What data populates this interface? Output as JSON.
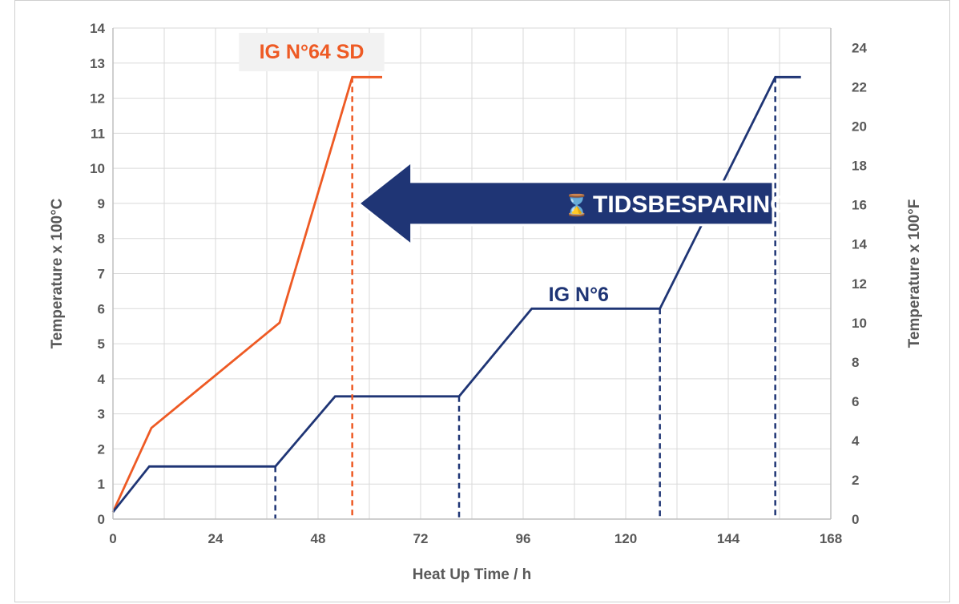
{
  "chart_data": {
    "type": "line",
    "title": "",
    "xlabel": "Heat Up Time / h",
    "ylabel_left": "Temperature x 100°C",
    "ylabel_right": "Temperature x 100°F",
    "xlim": [
      0,
      168
    ],
    "ylim_left": [
      0,
      14
    ],
    "ylim_right": [
      0,
      25
    ],
    "x_ticks": [
      "0",
      "24",
      "48",
      "72",
      "96",
      "120",
      "144",
      "168"
    ],
    "y_left_ticks": [
      "0",
      "1",
      "2",
      "3",
      "4",
      "5",
      "6",
      "7",
      "8",
      "9",
      "10",
      "11",
      "12",
      "13",
      "14"
    ],
    "y_right_ticks": [
      "0",
      "2",
      "4",
      "6",
      "8",
      "10",
      "12",
      "14",
      "16",
      "18",
      "20",
      "22",
      "24"
    ],
    "grid": true,
    "series": [
      {
        "name": "IG N°64 SD",
        "color": "#ee5a24",
        "points": [
          [
            0,
            0.2
          ],
          [
            9,
            2.6
          ],
          [
            39,
            5.6
          ],
          [
            56,
            12.6
          ],
          [
            63,
            12.6
          ]
        ],
        "dashed_markers_x": [
          56
        ]
      },
      {
        "name": "IG N°6",
        "color": "#1f3575",
        "points": [
          [
            0,
            0.2
          ],
          [
            8.5,
            1.5
          ],
          [
            38,
            1.5
          ],
          [
            52,
            3.5
          ],
          [
            81,
            3.5
          ],
          [
            98,
            6.0
          ],
          [
            128,
            6.0
          ],
          [
            155,
            12.6
          ],
          [
            161,
            12.6
          ]
        ],
        "dashed_markers_x": [
          38,
          81,
          128,
          155
        ]
      }
    ],
    "annotations": [
      {
        "text": "TIDSBESPARING",
        "icon": "hourglass-icon",
        "glyph": "⌛",
        "color": "#1f3575"
      }
    ]
  }
}
